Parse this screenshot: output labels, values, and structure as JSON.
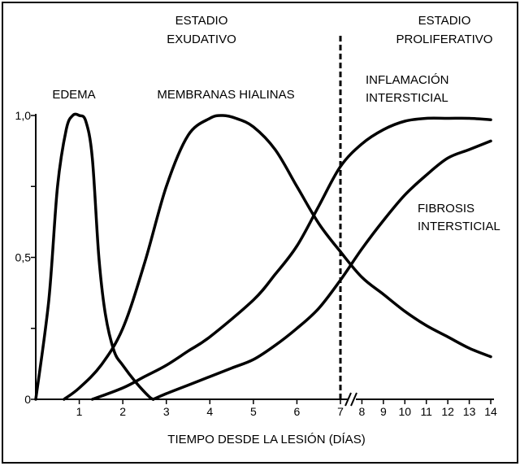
{
  "chart_data": {
    "type": "line",
    "title": "",
    "xlabel": "TIEMPO DESDE LA LESIÓN (DÍAS)",
    "ylabel": "",
    "x_ticks": [
      "1",
      "2",
      "3",
      "4",
      "5",
      "6",
      "7",
      "8",
      "9",
      "10",
      "11",
      "12",
      "13",
      "14"
    ],
    "y_ticks": [
      "0",
      "0,5",
      "1,0"
    ],
    "ylim": [
      0,
      1.0
    ],
    "axis_break": "between 7 and 8",
    "grid": false,
    "legend": "none",
    "stages": [
      {
        "line1": "ESTADIO",
        "line2": "EXUDATIVO"
      },
      {
        "line1": "ESTADIO",
        "line2": "PROLIFERATIVO"
      }
    ],
    "stage_divider_x": 7,
    "series": [
      {
        "name": "EDEMA",
        "label_line1": "EDEMA",
        "label_line2": "",
        "color": "#000000",
        "x": [
          0,
          0.3,
          0.5,
          0.7,
          0.85,
          1.0,
          1.15,
          1.3,
          1.45,
          1.6,
          1.8,
          2.0,
          2.3,
          2.6,
          2.7
        ],
        "y": [
          0,
          0.35,
          0.75,
          0.95,
          1.0,
          1.0,
          0.98,
          0.85,
          0.5,
          0.3,
          0.17,
          0.12,
          0.06,
          0.01,
          0
        ]
      },
      {
        "name": "MEMBRANAS HIALINAS",
        "label_line1": "MEMBRANAS HIALINAS",
        "label_line2": "",
        "color": "#000000",
        "x": [
          0.65,
          1.0,
          1.5,
          2.0,
          2.5,
          3.0,
          3.5,
          4.0,
          4.3,
          4.6,
          5.0,
          5.5,
          6.0,
          6.5,
          7.0,
          8,
          9,
          10,
          11,
          12,
          13,
          14
        ],
        "y": [
          0,
          0.04,
          0.12,
          0.25,
          0.48,
          0.75,
          0.93,
          0.99,
          1.0,
          0.99,
          0.96,
          0.88,
          0.75,
          0.62,
          0.52,
          0.43,
          0.37,
          0.31,
          0.26,
          0.22,
          0.18,
          0.15
        ]
      },
      {
        "name": "INFLAMACIÓN INTERSTICIAL",
        "label_line1": "INFLAMACIÓN",
        "label_line2": "INTERSTICIAL",
        "color": "#000000",
        "x": [
          1.3,
          2.0,
          2.5,
          3.0,
          3.5,
          4.0,
          5.0,
          5.5,
          6.0,
          6.5,
          7.0,
          8,
          9,
          10,
          11,
          12,
          13,
          14
        ],
        "y": [
          0,
          0.04,
          0.08,
          0.12,
          0.17,
          0.22,
          0.35,
          0.44,
          0.54,
          0.68,
          0.82,
          0.9,
          0.95,
          0.98,
          0.99,
          0.99,
          0.99,
          0.985
        ]
      },
      {
        "name": "FIBROSIS INTERSTICIAL",
        "label_line1": "FIBROSIS",
        "label_line2": "INTERSTICIAL",
        "color": "#000000",
        "x": [
          2.7,
          3.0,
          3.5,
          4.0,
          4.5,
          5.0,
          5.5,
          6.0,
          6.5,
          7.0,
          8,
          9,
          10,
          11,
          12,
          13,
          14
        ],
        "y": [
          0,
          0.02,
          0.05,
          0.08,
          0.11,
          0.14,
          0.19,
          0.25,
          0.32,
          0.42,
          0.53,
          0.63,
          0.72,
          0.79,
          0.85,
          0.88,
          0.91
        ]
      }
    ]
  }
}
